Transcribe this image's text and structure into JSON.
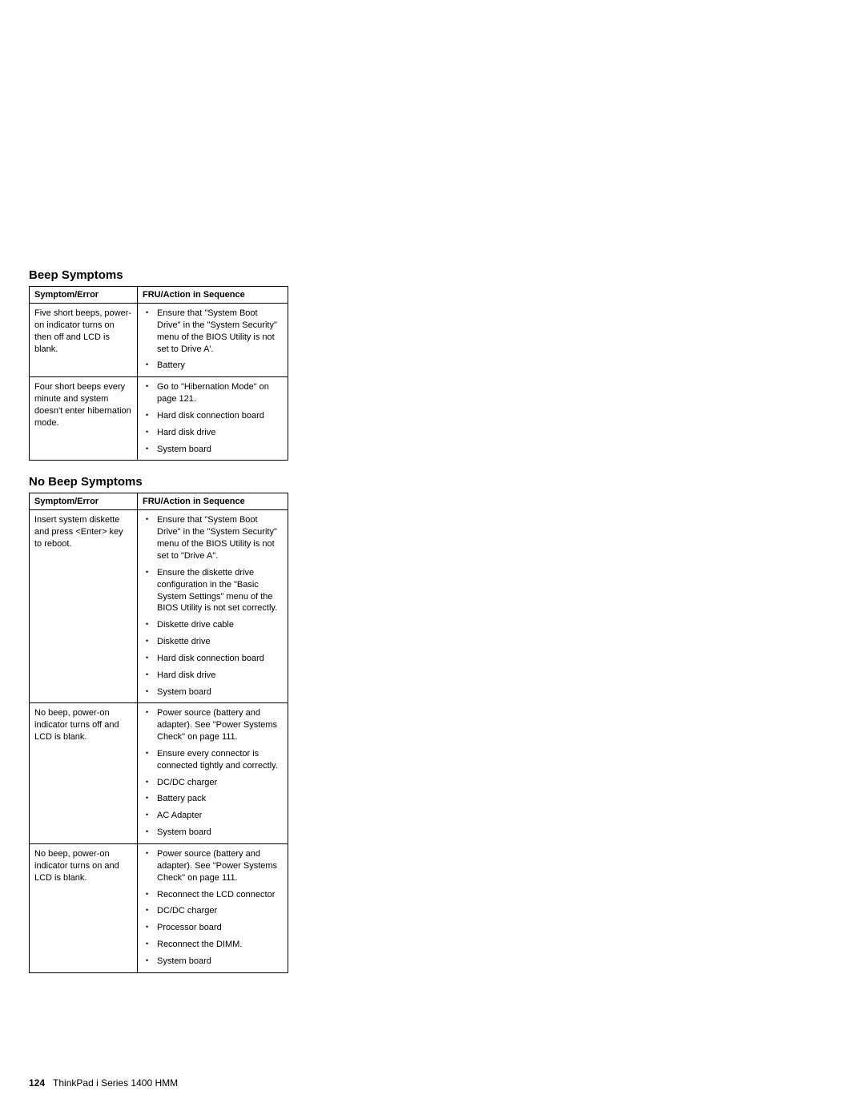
{
  "section1": {
    "heading": "Beep Symptoms",
    "col1_header": "Symptom/Error",
    "col2_header": "FRU/Action in Sequence",
    "rows": [
      {
        "symptom": "Five short beeps, power-on indicator turns on then off and LCD is blank.",
        "actions": [
          "Ensure that \"System Boot Drive\" in the \"System Security\" menu of the BIOS Utility is not set to  Drive A'.",
          "Battery"
        ]
      },
      {
        "symptom": "Four short beeps every minute and system doesn't enter hibernation mode.",
        "actions": [
          "Go to \"Hibernation Mode\" on page  121.",
          "Hard disk connection board",
          "Hard disk drive",
          "System board"
        ]
      }
    ]
  },
  "section2": {
    "heading": "No Beep Symptoms",
    "col1_header": "Symptom/Error",
    "col2_header": "FRU/Action in Sequence",
    "rows": [
      {
        "symptom": "Insert system diskette and press <Enter> key to reboot.",
        "actions": [
          "Ensure that \"System Boot Drive\" in the \"System Security\" menu of the BIOS Utility is not set to \"Drive A\".",
          "Ensure the diskette drive configuration in the \"Basic System Settings\" menu of the BIOS Utility is not set correctly.",
          "Diskette drive cable",
          "Diskette drive",
          "Hard disk connection board",
          "Hard disk drive",
          "System board"
        ]
      },
      {
        "symptom": "No beep, power-on indicator turns off and LCD is blank.",
        "actions": [
          "Power source (battery and adapter). See \"Power Systems Check\" on page  111.",
          "Ensure every connector is connected tightly and correctly.",
          "DC/DC charger",
          "Battery pack",
          "AC Adapter",
          "System board"
        ]
      },
      {
        "symptom": "No beep, power-on indicator turns on and LCD is blank.",
        "actions": [
          "Power source (battery and adapter). See \"Power Systems Check\" on page  111.",
          "Reconnect the LCD connector",
          "DC/DC charger",
          "Processor board",
          "Reconnect the DIMM.",
          "System board"
        ]
      }
    ]
  },
  "footer": {
    "page_number": "124",
    "title": "ThinkPad i Series 1400 HMM"
  }
}
